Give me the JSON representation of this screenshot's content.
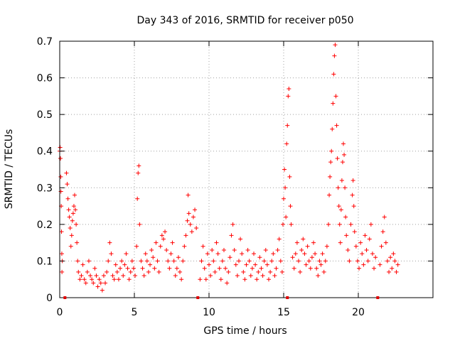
{
  "chart_data": {
    "type": "scatter",
    "title": "Day 343 of 2016, SRMTID for receiver p050",
    "xlabel": "GPS time / hours",
    "ylabel": "SRMTID / TECUs",
    "xlim": [
      0,
      25
    ],
    "ylim": [
      0,
      0.7
    ],
    "xticks": [
      0,
      5,
      10,
      15,
      20
    ],
    "yticks": [
      0,
      0.1,
      0.2,
      0.3,
      0.4,
      0.5,
      0.6,
      0.7
    ],
    "xtick_labels": [
      "0",
      "5",
      "10",
      "15",
      "20"
    ],
    "ytick_labels": [
      "0",
      "0.1",
      "0.2",
      "0.3",
      "0.4",
      "0.5",
      "0.6",
      "0.7"
    ],
    "grid": true,
    "marker": "+",
    "color": "#ff0000",
    "data_gaps_x": [
      0.35,
      9.25,
      15.25,
      21.3
    ],
    "series": [
      {
        "name": "SRMTID",
        "points": [
          [
            0.0,
            0.4
          ],
          [
            0.03,
            0.41
          ],
          [
            0.05,
            0.38
          ],
          [
            0.07,
            0.33
          ],
          [
            0.08,
            0.29
          ],
          [
            0.1,
            0.25
          ],
          [
            0.12,
            0.18
          ],
          [
            0.14,
            0.12
          ],
          [
            0.15,
            0.07
          ],
          [
            0.17,
            0.1
          ],
          [
            0.45,
            0.34
          ],
          [
            0.5,
            0.31
          ],
          [
            0.55,
            0.27
          ],
          [
            0.6,
            0.24
          ],
          [
            0.65,
            0.22
          ],
          [
            0.7,
            0.19
          ],
          [
            0.75,
            0.14
          ],
          [
            0.8,
            0.17
          ],
          [
            0.85,
            0.21
          ],
          [
            0.9,
            0.23
          ],
          [
            0.95,
            0.25
          ],
          [
            1.0,
            0.28
          ],
          [
            1.05,
            0.24
          ],
          [
            1.1,
            0.2
          ],
          [
            1.15,
            0.15
          ],
          [
            1.2,
            0.1
          ],
          [
            1.25,
            0.07
          ],
          [
            1.35,
            0.05
          ],
          [
            1.45,
            0.06
          ],
          [
            1.55,
            0.09
          ],
          [
            1.65,
            0.05
          ],
          [
            1.75,
            0.04
          ],
          [
            1.85,
            0.07
          ],
          [
            1.95,
            0.1
          ],
          [
            2.05,
            0.06
          ],
          [
            2.15,
            0.05
          ],
          [
            2.25,
            0.04
          ],
          [
            2.35,
            0.08
          ],
          [
            2.45,
            0.06
          ],
          [
            2.55,
            0.03
          ],
          [
            2.65,
            0.05
          ],
          [
            2.75,
            0.04
          ],
          [
            2.85,
            0.02
          ],
          [
            2.95,
            0.06
          ],
          [
            3.05,
            0.04
          ],
          [
            3.15,
            0.07
          ],
          [
            3.25,
            0.1
          ],
          [
            3.35,
            0.15
          ],
          [
            3.45,
            0.12
          ],
          [
            3.55,
            0.06
          ],
          [
            3.65,
            0.05
          ],
          [
            3.75,
            0.09
          ],
          [
            3.85,
            0.07
          ],
          [
            3.95,
            0.05
          ],
          [
            4.05,
            0.08
          ],
          [
            4.15,
            0.1
          ],
          [
            4.25,
            0.06
          ],
          [
            4.35,
            0.09
          ],
          [
            4.45,
            0.12
          ],
          [
            4.55,
            0.08
          ],
          [
            4.65,
            0.05
          ],
          [
            4.75,
            0.07
          ],
          [
            4.85,
            0.1
          ],
          [
            4.95,
            0.08
          ],
          [
            5.05,
            0.06
          ],
          [
            5.15,
            0.14
          ],
          [
            5.2,
            0.27
          ],
          [
            5.25,
            0.34
          ],
          [
            5.3,
            0.36
          ],
          [
            5.35,
            0.2
          ],
          [
            5.45,
            0.1
          ],
          [
            5.55,
            0.08
          ],
          [
            5.65,
            0.06
          ],
          [
            5.75,
            0.12
          ],
          [
            5.85,
            0.1
          ],
          [
            5.95,
            0.07
          ],
          [
            6.05,
            0.09
          ],
          [
            6.15,
            0.13
          ],
          [
            6.25,
            0.11
          ],
          [
            6.35,
            0.08
          ],
          [
            6.45,
            0.15
          ],
          [
            6.55,
            0.1
          ],
          [
            6.65,
            0.07
          ],
          [
            6.75,
            0.14
          ],
          [
            6.85,
            0.17
          ],
          [
            6.95,
            0.16
          ],
          [
            7.05,
            0.18
          ],
          [
            7.15,
            0.13
          ],
          [
            7.25,
            0.1
          ],
          [
            7.35,
            0.08
          ],
          [
            7.45,
            0.12
          ],
          [
            7.55,
            0.15
          ],
          [
            7.65,
            0.1
          ],
          [
            7.75,
            0.06
          ],
          [
            7.85,
            0.08
          ],
          [
            7.95,
            0.11
          ],
          [
            8.05,
            0.07
          ],
          [
            8.15,
            0.05
          ],
          [
            8.25,
            0.1
          ],
          [
            8.35,
            0.14
          ],
          [
            8.45,
            0.17
          ],
          [
            8.55,
            0.21
          ],
          [
            8.6,
            0.28
          ],
          [
            8.65,
            0.23
          ],
          [
            8.75,
            0.2
          ],
          [
            8.85,
            0.18
          ],
          [
            8.95,
            0.22
          ],
          [
            9.05,
            0.24
          ],
          [
            9.15,
            0.19
          ],
          [
            9.4,
            0.05
          ],
          [
            9.5,
            0.1
          ],
          [
            9.6,
            0.14
          ],
          [
            9.7,
            0.08
          ],
          [
            9.8,
            0.05
          ],
          [
            9.9,
            0.12
          ],
          [
            10.0,
            0.09
          ],
          [
            10.1,
            0.06
          ],
          [
            10.2,
            0.13
          ],
          [
            10.3,
            0.1
          ],
          [
            10.4,
            0.07
          ],
          [
            10.5,
            0.15
          ],
          [
            10.6,
            0.12
          ],
          [
            10.7,
            0.08
          ],
          [
            10.8,
            0.05
          ],
          [
            10.9,
            0.1
          ],
          [
            11.0,
            0.13
          ],
          [
            11.1,
            0.08
          ],
          [
            11.2,
            0.04
          ],
          [
            11.3,
            0.07
          ],
          [
            11.4,
            0.11
          ],
          [
            11.5,
            0.17
          ],
          [
            11.6,
            0.2
          ],
          [
            11.7,
            0.13
          ],
          [
            11.8,
            0.09
          ],
          [
            11.9,
            0.06
          ],
          [
            12.0,
            0.1
          ],
          [
            12.1,
            0.16
          ],
          [
            12.2,
            0.12
          ],
          [
            12.3,
            0.07
          ],
          [
            12.4,
            0.05
          ],
          [
            12.5,
            0.09
          ],
          [
            12.6,
            0.13
          ],
          [
            12.7,
            0.1
          ],
          [
            12.8,
            0.06
          ],
          [
            12.9,
            0.08
          ],
          [
            13.0,
            0.12
          ],
          [
            13.1,
            0.09
          ],
          [
            13.2,
            0.05
          ],
          [
            13.3,
            0.07
          ],
          [
            13.4,
            0.11
          ],
          [
            13.5,
            0.08
          ],
          [
            13.6,
            0.06
          ],
          [
            13.7,
            0.1
          ],
          [
            13.8,
            0.13
          ],
          [
            13.9,
            0.09
          ],
          [
            14.0,
            0.05
          ],
          [
            14.1,
            0.07
          ],
          [
            14.2,
            0.1
          ],
          [
            14.3,
            0.12
          ],
          [
            14.4,
            0.06
          ],
          [
            14.5,
            0.08
          ],
          [
            14.6,
            0.13
          ],
          [
            14.7,
            0.16
          ],
          [
            14.8,
            0.1
          ],
          [
            14.9,
            0.07
          ],
          [
            14.95,
            0.2
          ],
          [
            15.0,
            0.27
          ],
          [
            15.05,
            0.35
          ],
          [
            15.1,
            0.3
          ],
          [
            15.15,
            0.22
          ],
          [
            15.2,
            0.42
          ],
          [
            15.25,
            0.47
          ],
          [
            15.3,
            0.55
          ],
          [
            15.35,
            0.57
          ],
          [
            15.4,
            0.33
          ],
          [
            15.45,
            0.25
          ],
          [
            15.5,
            0.2
          ],
          [
            15.6,
            0.11
          ],
          [
            15.7,
            0.08
          ],
          [
            15.8,
            0.12
          ],
          [
            15.9,
            0.15
          ],
          [
            16.0,
            0.1
          ],
          [
            16.1,
            0.07
          ],
          [
            16.2,
            0.13
          ],
          [
            16.3,
            0.16
          ],
          [
            16.4,
            0.12
          ],
          [
            16.5,
            0.09
          ],
          [
            16.6,
            0.14
          ],
          [
            16.7,
            0.1
          ],
          [
            16.8,
            0.08
          ],
          [
            16.9,
            0.11
          ],
          [
            17.0,
            0.15
          ],
          [
            17.1,
            0.12
          ],
          [
            17.2,
            0.08
          ],
          [
            17.3,
            0.06
          ],
          [
            17.4,
            0.1
          ],
          [
            17.5,
            0.09
          ],
          [
            17.6,
            0.12
          ],
          [
            17.7,
            0.07
          ],
          [
            17.8,
            0.1
          ],
          [
            17.9,
            0.14
          ],
          [
            18.0,
            0.2
          ],
          [
            18.05,
            0.28
          ],
          [
            18.1,
            0.33
          ],
          [
            18.15,
            0.37
          ],
          [
            18.2,
            0.4
          ],
          [
            18.25,
            0.46
          ],
          [
            18.3,
            0.53
          ],
          [
            18.35,
            0.61
          ],
          [
            18.4,
            0.66
          ],
          [
            18.45,
            0.69
          ],
          [
            18.5,
            0.55
          ],
          [
            18.55,
            0.47
          ],
          [
            18.6,
            0.38
          ],
          [
            18.65,
            0.3
          ],
          [
            18.7,
            0.25
          ],
          [
            18.75,
            0.2
          ],
          [
            18.8,
            0.15
          ],
          [
            18.85,
            0.24
          ],
          [
            18.9,
            0.32
          ],
          [
            18.95,
            0.37
          ],
          [
            19.0,
            0.42
          ],
          [
            19.05,
            0.39
          ],
          [
            19.1,
            0.3
          ],
          [
            19.15,
            0.22
          ],
          [
            19.2,
            0.17
          ],
          [
            19.3,
            0.13
          ],
          [
            19.4,
            0.1
          ],
          [
            19.5,
            0.2
          ],
          [
            19.6,
            0.28
          ],
          [
            19.65,
            0.32
          ],
          [
            19.7,
            0.25
          ],
          [
            19.75,
            0.18
          ],
          [
            19.85,
            0.14
          ],
          [
            19.95,
            0.1
          ],
          [
            20.05,
            0.08
          ],
          [
            20.15,
            0.15
          ],
          [
            20.25,
            0.12
          ],
          [
            20.35,
            0.09
          ],
          [
            20.45,
            0.17
          ],
          [
            20.55,
            0.13
          ],
          [
            20.65,
            0.1
          ],
          [
            20.75,
            0.16
          ],
          [
            20.85,
            0.2
          ],
          [
            20.95,
            0.12
          ],
          [
            21.05,
            0.08
          ],
          [
            21.15,
            0.11
          ],
          [
            21.45,
            0.09
          ],
          [
            21.55,
            0.14
          ],
          [
            21.65,
            0.18
          ],
          [
            21.75,
            0.22
          ],
          [
            21.85,
            0.15
          ],
          [
            21.95,
            0.1
          ],
          [
            22.05,
            0.07
          ],
          [
            22.15,
            0.11
          ],
          [
            22.25,
            0.08
          ],
          [
            22.35,
            0.12
          ],
          [
            22.45,
            0.1
          ],
          [
            22.55,
            0.07
          ],
          [
            22.65,
            0.09
          ]
        ]
      }
    ]
  }
}
